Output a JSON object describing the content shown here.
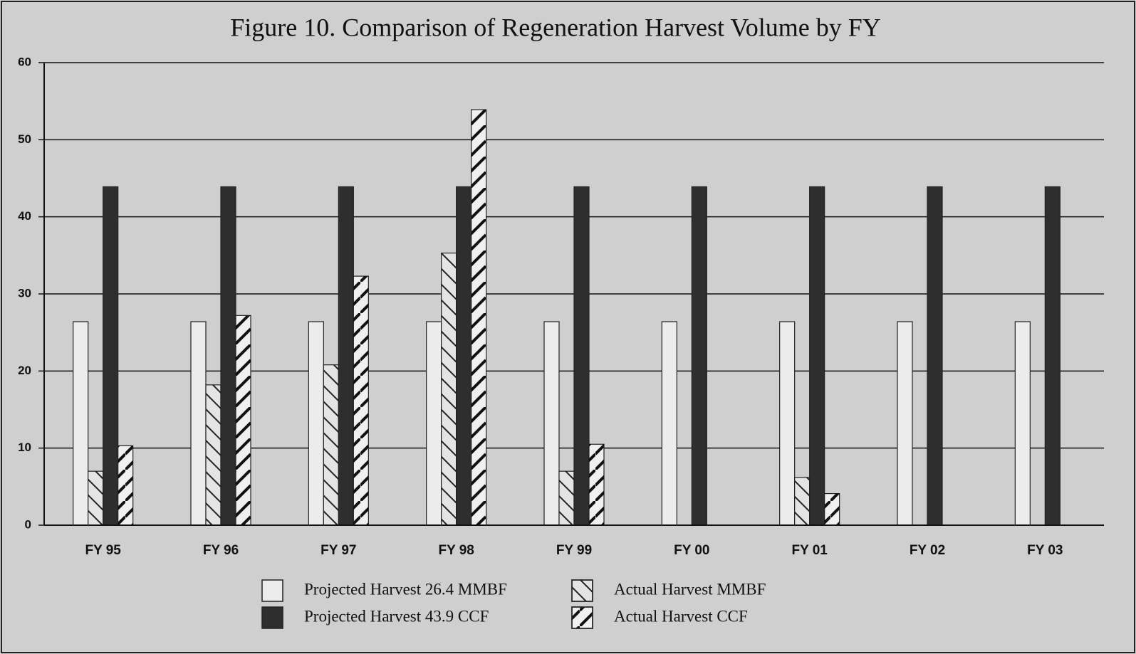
{
  "chart_data": {
    "type": "bar",
    "title": "Figure 10.  Comparison of Regeneration Harvest Volume by FY",
    "categories": [
      "FY 95",
      "FY 96",
      "FY 97",
      "FY 98",
      "FY 99",
      "FY 00",
      "FY 01",
      "FY 02",
      "FY 03"
    ],
    "series": [
      {
        "name": "Projected Harvest 26.4 MMBF",
        "color": "#ececec",
        "values": [
          26.4,
          26.4,
          26.4,
          26.4,
          26.4,
          26.4,
          26.4,
          26.4,
          26.4
        ]
      },
      {
        "name": "Actual Harvest MMBF",
        "color": "#e4e4e4",
        "values": [
          7,
          18.2,
          20.8,
          35.3,
          7,
          null,
          6.2,
          null,
          null
        ]
      },
      {
        "name": "Projected Harvest 43.9 CCF",
        "color": "#2e2e2e",
        "values": [
          43.9,
          43.9,
          43.9,
          43.9,
          43.9,
          43.9,
          43.9,
          43.9,
          43.9
        ]
      },
      {
        "name": "Actual Harvest CCF",
        "color": "#f0f0f0",
        "values": [
          10.3,
          27.2,
          32.3,
          53.9,
          10.5,
          null,
          4.1,
          null,
          null
        ]
      }
    ],
    "ylim": [
      0,
      60
    ],
    "yticks": [
      0,
      10,
      20,
      30,
      40,
      50,
      60
    ],
    "grid": true
  }
}
